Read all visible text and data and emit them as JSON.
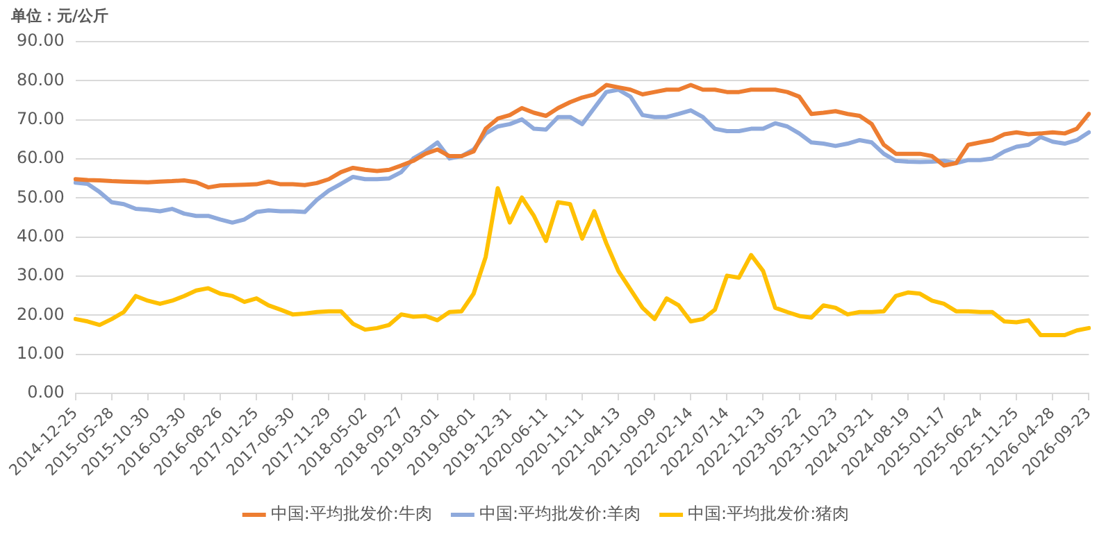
{
  "chart_data": {
    "type": "line",
    "ylabel": "单位：元/公斤",
    "categories": [
      "2014-12-25",
      null,
      null,
      "2015-05-28",
      null,
      null,
      "2015-10-30",
      null,
      null,
      "2016-03-30",
      null,
      null,
      "2016-08-26",
      null,
      null,
      "2017-01-25",
      null,
      null,
      "2017-06-30",
      null,
      null,
      "2017-11-29",
      null,
      null,
      "2018-05-02",
      null,
      null,
      "2018-09-27",
      null,
      null,
      "2019-03-01",
      null,
      null,
      "2019-08-01",
      null,
      null,
      "2019-12-31",
      null,
      null,
      "2020-06-11",
      null,
      null,
      "2020-11-11",
      null,
      null,
      "2021-04-13",
      null,
      null,
      "2021-09-09",
      null,
      null,
      "2022-02-14",
      null,
      null,
      "2022-07-14",
      null,
      null,
      "2022-12-13",
      null,
      null,
      "2023-05-22",
      null,
      null,
      "2023-10-23",
      null,
      null,
      "2024-03-21",
      null,
      null,
      "2024-08-19",
      null,
      null,
      "2025-01-17",
      null,
      null,
      "2025-06-24",
      null,
      null,
      "2025-11-25",
      null,
      null,
      "2026-04-28",
      null,
      null,
      "2026-09-23"
    ],
    "series": [
      {
        "name": "中国:平均批发价:牛肉",
        "color": "#ed7d31",
        "values": [
          54.8,
          54.6,
          54.5,
          54.3,
          54.2,
          54.1,
          54.0,
          54.2,
          54.3,
          54.5,
          54.0,
          52.7,
          53.2,
          53.3,
          53.4,
          53.5,
          54.2,
          53.5,
          53.5,
          53.3,
          53.8,
          54.8,
          56.6,
          57.7,
          57.2,
          56.9,
          57.2,
          58.3,
          59.5,
          61.3,
          62.4,
          60.7,
          60.7,
          61.9,
          67.7,
          70.3,
          71.2,
          73.0,
          71.8,
          71.0,
          73.0,
          74.5,
          75.7,
          76.5,
          78.9,
          78.3,
          77.7,
          76.5,
          77.1,
          77.7,
          77.7,
          78.9,
          77.7,
          77.7,
          77.1,
          77.1,
          77.7,
          77.7,
          77.7,
          77.1,
          75.9,
          71.5,
          71.8,
          72.2,
          71.5,
          71.0,
          68.9,
          63.6,
          61.3,
          61.3,
          61.3,
          60.7,
          58.3,
          58.9,
          63.6,
          64.2,
          64.8,
          66.3,
          66.8,
          66.3,
          66.5,
          66.8,
          66.5,
          67.7,
          71.5
        ]
      },
      {
        "name": "中国:平均批发价:羊肉",
        "color": "#8faadc",
        "values": [
          53.9,
          53.6,
          51.5,
          48.9,
          48.4,
          47.2,
          47.0,
          46.6,
          47.2,
          46.0,
          45.4,
          45.4,
          44.5,
          43.7,
          44.5,
          46.4,
          46.8,
          46.6,
          46.6,
          46.4,
          49.5,
          51.9,
          53.6,
          55.4,
          54.8,
          54.8,
          55.0,
          56.6,
          60.1,
          61.9,
          64.2,
          60.1,
          60.7,
          62.4,
          66.5,
          68.3,
          68.9,
          70.1,
          67.7,
          67.5,
          70.7,
          70.7,
          68.9,
          73.0,
          77.1,
          77.7,
          75.9,
          71.2,
          70.7,
          70.7,
          71.5,
          72.4,
          70.7,
          67.7,
          67.1,
          67.1,
          67.7,
          67.7,
          69.1,
          68.3,
          66.5,
          64.2,
          63.9,
          63.3,
          63.9,
          64.8,
          64.2,
          61.3,
          59.5,
          59.3,
          59.2,
          59.3,
          59.5,
          58.9,
          59.7,
          59.7,
          60.1,
          61.9,
          63.1,
          63.6,
          65.6,
          64.4,
          63.9,
          64.8,
          66.8
        ]
      },
      {
        "name": "中国:平均批发价:猪肉",
        "color": "#ffc000",
        "values": [
          19.0,
          18.4,
          17.5,
          19.0,
          20.8,
          24.9,
          23.7,
          22.9,
          23.7,
          24.9,
          26.3,
          26.9,
          25.5,
          24.9,
          23.4,
          24.3,
          22.5,
          21.4,
          20.2,
          20.4,
          20.8,
          21.0,
          21.0,
          17.8,
          16.3,
          16.7,
          17.5,
          20.2,
          19.6,
          19.8,
          18.7,
          20.8,
          21.0,
          25.5,
          34.9,
          52.5,
          43.7,
          50.1,
          45.4,
          39.0,
          48.9,
          48.4,
          39.6,
          46.6,
          38.4,
          31.3,
          26.6,
          21.9,
          19.0,
          24.3,
          22.5,
          18.4,
          19.0,
          21.4,
          30.1,
          29.6,
          35.4,
          31.3,
          21.9,
          20.8,
          19.8,
          19.4,
          22.5,
          21.9,
          20.2,
          20.8,
          20.8,
          21.0,
          24.9,
          25.8,
          25.5,
          23.7,
          22.9,
          21.0,
          21.0,
          20.8,
          20.8,
          18.4,
          18.2,
          18.7,
          14.9,
          14.9,
          14.9,
          16.1,
          16.7
        ]
      }
    ],
    "ylim": [
      0,
      90
    ],
    "yticks": [
      {
        "value": 0,
        "label": "0.00"
      },
      {
        "value": 10,
        "label": "10.00"
      },
      {
        "value": 20,
        "label": "20.00"
      },
      {
        "value": 30,
        "label": "30.00"
      },
      {
        "value": 40,
        "label": "40.00"
      },
      {
        "value": 50,
        "label": "50.00"
      },
      {
        "value": 60,
        "label": "60.00"
      },
      {
        "value": 70,
        "label": "70.00"
      },
      {
        "value": 80,
        "label": "80.00"
      },
      {
        "value": 90,
        "label": "90.00"
      }
    ],
    "grid": "y",
    "legend": "bottom",
    "marker": "none",
    "line_style": "solid"
  }
}
